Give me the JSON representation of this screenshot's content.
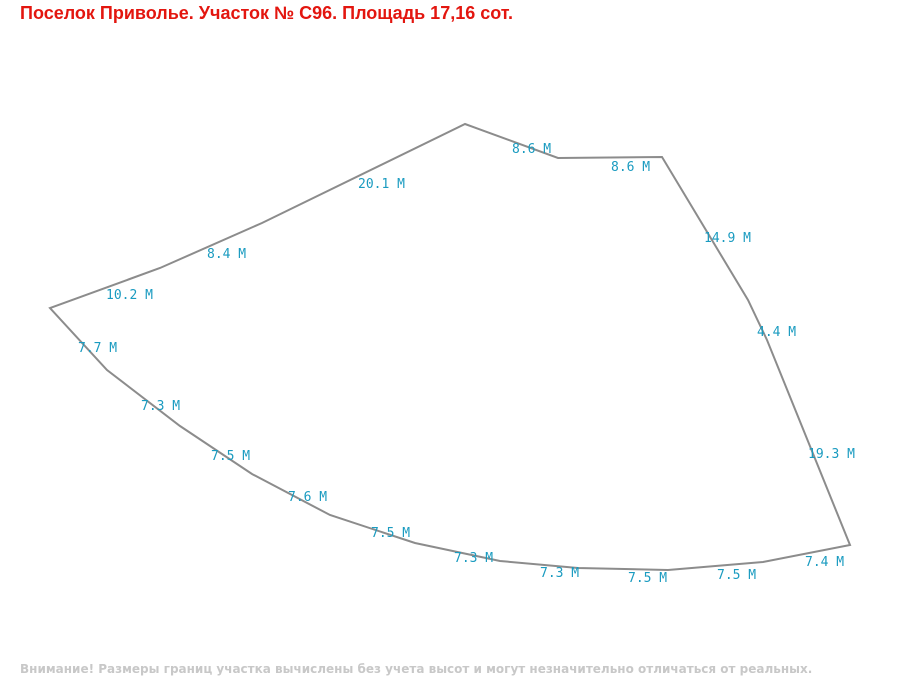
{
  "header": {
    "title": "Поселок Приволье. Участок № С96. Площадь 17,16 сот.",
    "title_color": "#e3160f"
  },
  "footer": {
    "note": "Внимание! Размеры границ участка вычислены без учета высот и могут незначительно отличаться от реальных."
  },
  "plot": {
    "boundary_color": "#8c8c8c",
    "label_color": "#1a9bc0",
    "edge_labels": [
      "8.6 М",
      "8.6 М",
      "14.9 М",
      "4.4 М",
      "19.3 М",
      "7.4 М",
      "7.5 М",
      "7.5 М",
      "7.3 М",
      "7.3 М",
      "7.5 М",
      "7.6 М",
      "7.5 М",
      "7.3 М",
      "7.7 М",
      "10.2 М",
      "8.4 М",
      "20.1 М"
    ]
  }
}
